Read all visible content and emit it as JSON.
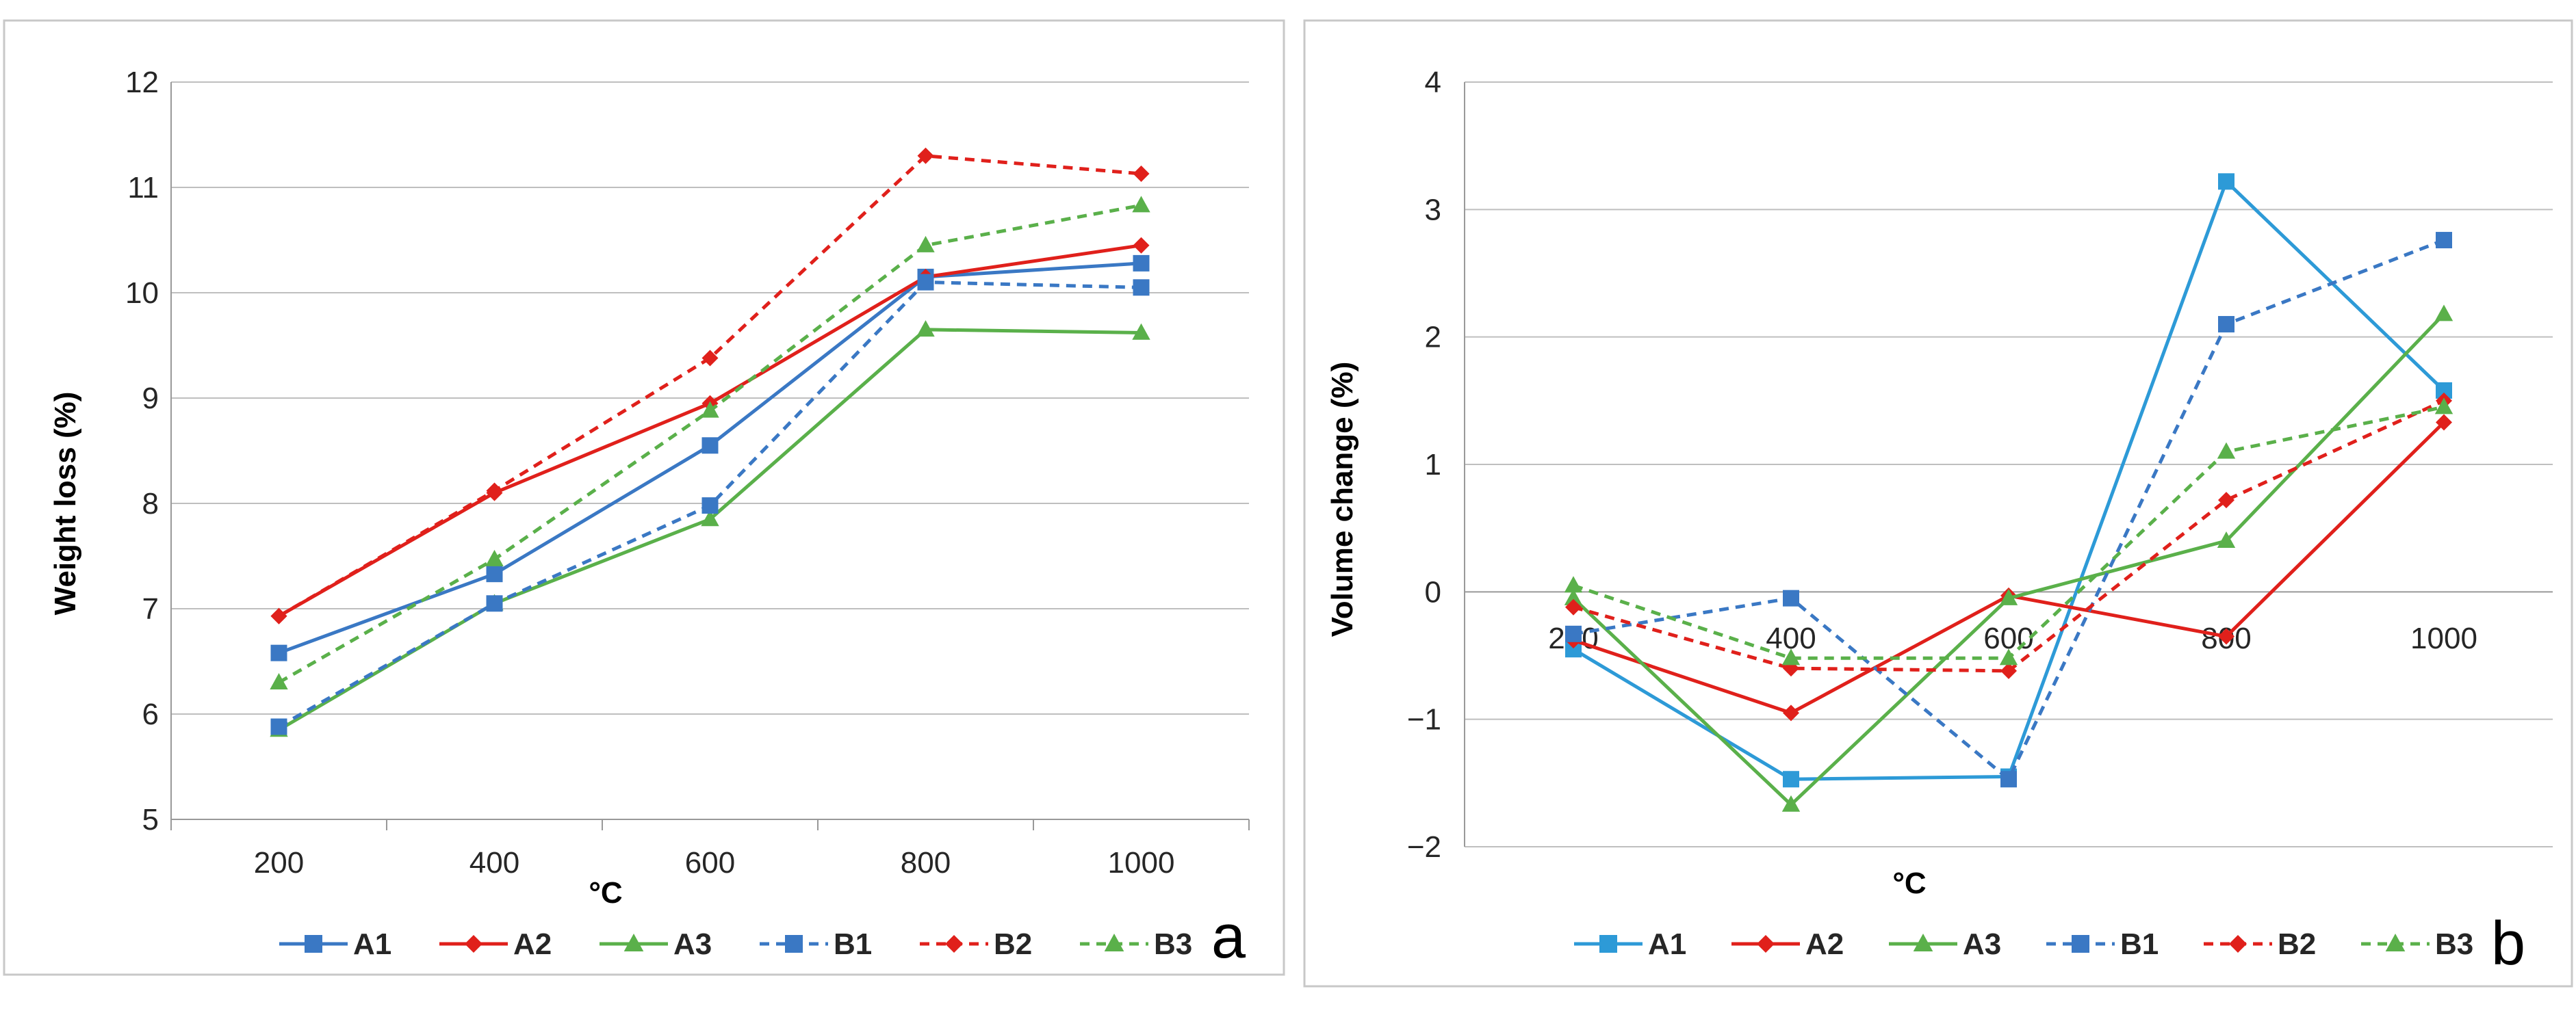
{
  "colors": {
    "blue": "#3a78c4",
    "red": "#e0201b",
    "green": "#5ab04a",
    "grid": "#bfbfbf",
    "frame": "#c8c8c8"
  },
  "chart_data": [
    {
      "type": "line",
      "panel_label": "a",
      "xlabel": "°C",
      "ylabel": "Weight loss (%)",
      "categories": [
        "200",
        "400",
        "600",
        "800",
        "1000"
      ],
      "ylim": [
        5,
        12
      ],
      "yticks": [
        "5",
        "6",
        "7",
        "8",
        "9",
        "10",
        "11",
        "12"
      ],
      "grid": true,
      "legend_position": "bottom",
      "series": [
        {
          "name": "A1",
          "color": "#3a78c4",
          "dash": "solid",
          "marker": "square",
          "values": [
            6.58,
            7.33,
            8.55,
            10.15,
            10.28
          ]
        },
        {
          "name": "A2",
          "color": "#e0201b",
          "dash": "solid",
          "marker": "diamond",
          "values": [
            6.93,
            8.1,
            8.95,
            10.15,
            10.45
          ]
        },
        {
          "name": "A3",
          "color": "#5ab04a",
          "dash": "solid",
          "marker": "triangle",
          "values": [
            5.85,
            7.05,
            7.85,
            9.65,
            9.62
          ]
        },
        {
          "name": "B1",
          "color": "#3a78c4",
          "dash": "dashed",
          "marker": "square",
          "values": [
            5.88,
            7.05,
            7.98,
            10.1,
            10.05
          ]
        },
        {
          "name": "B2",
          "color": "#e0201b",
          "dash": "dashed",
          "marker": "diamond",
          "values": [
            6.93,
            8.12,
            9.38,
            11.3,
            11.13
          ]
        },
        {
          "name": "B3",
          "color": "#5ab04a",
          "dash": "dashed",
          "marker": "triangle",
          "values": [
            6.3,
            7.47,
            8.88,
            10.45,
            10.83
          ]
        }
      ]
    },
    {
      "type": "line",
      "panel_label": "b",
      "xlabel": "°C",
      "ylabel": "Volume change (%)",
      "categories": [
        "200",
        "400",
        "600",
        "800",
        "1000"
      ],
      "ylim": [
        -2,
        4
      ],
      "yticks": [
        "−2",
        "−1",
        "0",
        "1",
        "2",
        "3",
        "4"
      ],
      "grid": true,
      "legend_position": "bottom",
      "series": [
        {
          "name": "A1",
          "color": "#2d9ad7",
          "dash": "solid",
          "marker": "square",
          "values": [
            -0.45,
            -1.47,
            -1.45,
            3.22,
            1.58
          ]
        },
        {
          "name": "A2",
          "color": "#e0201b",
          "dash": "solid",
          "marker": "diamond",
          "values": [
            -0.38,
            -0.95,
            -0.03,
            -0.35,
            1.33
          ]
        },
        {
          "name": "A3",
          "color": "#5ab04a",
          "dash": "solid",
          "marker": "triangle",
          "values": [
            -0.05,
            -1.67,
            -0.05,
            0.4,
            2.18
          ]
        },
        {
          "name": "B1",
          "color": "#3a78c4",
          "dash": "dashed",
          "marker": "square",
          "values": [
            -0.33,
            -0.05,
            -1.47,
            2.1,
            2.76
          ]
        },
        {
          "name": "B2",
          "color": "#e0201b",
          "dash": "dashed",
          "marker": "diamond",
          "values": [
            -0.12,
            -0.6,
            -0.62,
            0.72,
            1.5
          ]
        },
        {
          "name": "B3",
          "color": "#5ab04a",
          "dash": "dashed",
          "marker": "triangle",
          "values": [
            0.05,
            -0.52,
            -0.52,
            1.1,
            1.45
          ]
        }
      ]
    }
  ]
}
